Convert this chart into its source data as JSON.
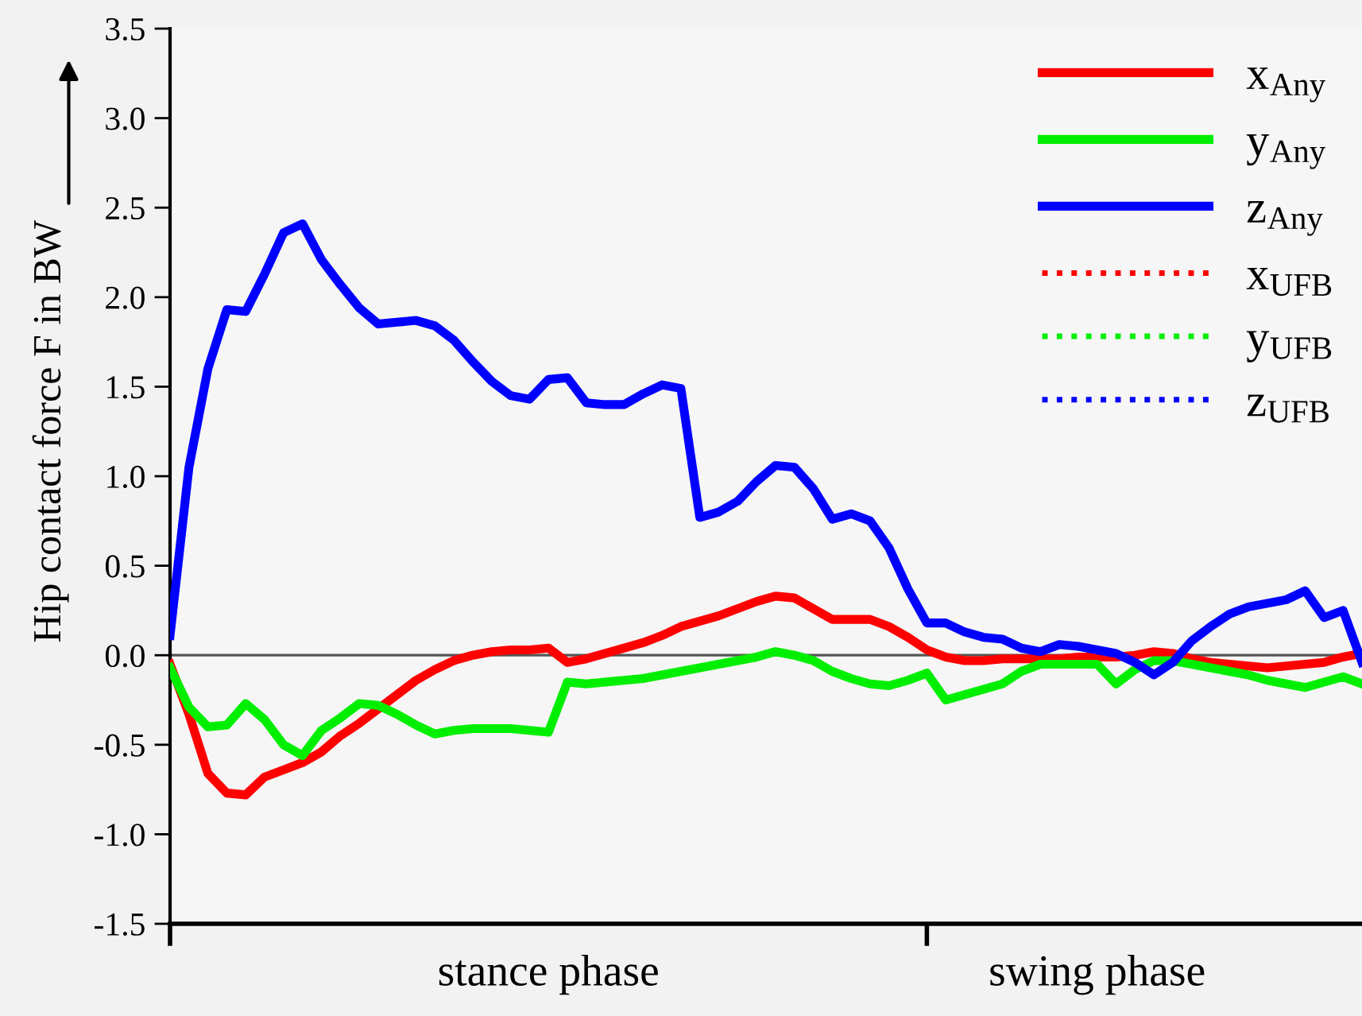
{
  "chart_data": {
    "type": "line",
    "ylabel": "Hip contact force F in BW",
    "categories": [
      null,
      null,
      null,
      null,
      null,
      null,
      null,
      null,
      null,
      null,
      null,
      null,
      null,
      null,
      null,
      null,
      null,
      null,
      null,
      null,
      "stance phase",
      null,
      null,
      null,
      null,
      null,
      null,
      null,
      null,
      null,
      null,
      null,
      null,
      null,
      null,
      null,
      null,
      null,
      null,
      null,
      null,
      null,
      null,
      null,
      null,
      null,
      null,
      null,
      null,
      "swing phase",
      null,
      null,
      null,
      null,
      null,
      null,
      null,
      null,
      null,
      null,
      null,
      null,
      null,
      null
    ],
    "ylim": [
      -1.5,
      3.5
    ],
    "yticks": [
      {
        "value": -1.5,
        "label": "-1.5"
      },
      {
        "value": -1,
        "label": "-1.0"
      },
      {
        "value": -0.5,
        "label": "-0.5"
      },
      {
        "value": 0,
        "label": "0.0"
      },
      {
        "value": 0.5,
        "label": "0.5"
      },
      {
        "value": 1,
        "label": "1.0"
      },
      {
        "value": 1.5,
        "label": "1.5"
      },
      {
        "value": 2,
        "label": "2.0"
      },
      {
        "value": 2.5,
        "label": "2.5"
      },
      {
        "value": 3,
        "label": "3.0"
      },
      {
        "value": 3.5,
        "label": "3.5"
      }
    ],
    "ref_lines": [
      {
        "axis": "y",
        "value": 0,
        "color": "#555555"
      }
    ],
    "legend": "top right",
    "marker": "none",
    "series": [
      {
        "name": "x$_{Any}$",
        "color": "#ff0000",
        "line_style": "solid",
        "values": [
          -0.05,
          -0.33,
          -0.66,
          -0.77,
          -0.78,
          -0.68,
          -0.64,
          -0.6,
          -0.54,
          -0.45,
          -0.38,
          -0.3,
          -0.22,
          -0.14,
          -0.08,
          -0.03,
          0.0,
          0.02,
          0.03,
          0.03,
          0.04,
          -0.04,
          -0.02,
          0.01,
          0.04,
          0.07,
          0.11,
          0.16,
          0.19,
          0.22,
          0.26,
          0.3,
          0.33,
          0.32,
          0.26,
          0.2,
          0.2,
          0.2,
          0.16,
          0.1,
          0.03,
          -0.01,
          -0.03,
          -0.03,
          -0.02,
          -0.02,
          -0.02,
          -0.02,
          -0.01,
          -0.01,
          -0.01,
          0.0,
          0.02,
          0.01,
          -0.02,
          -0.04,
          -0.05,
          -0.06,
          -0.07,
          -0.06,
          -0.05,
          -0.04,
          -0.01,
          0.01
        ]
      },
      {
        "name": "y$_{Any}$",
        "color": "#00ee00",
        "line_style": "solid",
        "values": [
          -0.07,
          -0.29,
          -0.4,
          -0.39,
          -0.27,
          -0.36,
          -0.5,
          -0.56,
          -0.42,
          -0.35,
          -0.27,
          -0.28,
          -0.33,
          -0.39,
          -0.44,
          -0.42,
          -0.41,
          -0.41,
          -0.41,
          -0.42,
          -0.43,
          -0.15,
          -0.16,
          -0.15,
          -0.14,
          -0.13,
          -0.11,
          -0.09,
          -0.07,
          -0.05,
          -0.03,
          -0.01,
          0.02,
          0.0,
          -0.03,
          -0.09,
          -0.13,
          -0.16,
          -0.17,
          -0.14,
          -0.1,
          -0.25,
          -0.22,
          -0.19,
          -0.16,
          -0.09,
          -0.05,
          -0.05,
          -0.05,
          -0.05,
          -0.16,
          -0.08,
          -0.03,
          -0.03,
          -0.05,
          -0.07,
          -0.09,
          -0.11,
          -0.14,
          -0.16,
          -0.18,
          -0.15,
          -0.12,
          -0.16
        ]
      },
      {
        "name": "z$_{Any}$",
        "color": "#0000ff",
        "line_style": "solid",
        "values": [
          0.11,
          1.05,
          1.6,
          1.93,
          1.92,
          2.13,
          2.36,
          2.41,
          2.21,
          2.07,
          1.94,
          1.85,
          1.86,
          1.87,
          1.84,
          1.76,
          1.64,
          1.53,
          1.45,
          1.43,
          1.54,
          1.55,
          1.41,
          1.4,
          1.4,
          1.46,
          1.51,
          1.49,
          0.77,
          0.8,
          0.86,
          0.97,
          1.06,
          1.05,
          0.93,
          0.76,
          0.79,
          0.75,
          0.6,
          0.37,
          0.18,
          0.18,
          0.13,
          0.1,
          0.09,
          0.04,
          0.02,
          0.06,
          0.05,
          0.03,
          0.01,
          -0.04,
          -0.11,
          -0.04,
          0.08,
          0.16,
          0.23,
          0.27,
          0.29,
          0.31,
          0.36,
          0.21,
          0.25,
          -0.04
        ]
      },
      {
        "name": "x$_{UFB}$",
        "color": "#ff0000",
        "line_style": "dotted",
        "values": [
          null,
          null,
          null,
          null,
          null,
          null,
          null,
          null,
          null,
          null,
          null,
          null,
          null,
          null,
          null,
          null,
          null,
          null,
          null,
          null,
          null,
          null,
          null,
          null,
          null,
          null,
          null,
          null,
          null,
          null,
          null,
          null,
          null,
          null,
          null,
          null,
          null,
          null,
          null,
          null,
          null,
          null,
          null,
          null,
          null,
          null,
          null,
          null,
          null,
          null,
          null,
          null,
          null,
          null,
          null,
          null,
          null,
          null,
          null,
          null,
          null,
          null,
          null,
          null
        ]
      },
      {
        "name": "y$_{UFB}$",
        "color": "#00ee00",
        "line_style": "dotted",
        "values": [
          null,
          null,
          null,
          null,
          null,
          null,
          null,
          null,
          null,
          null,
          null,
          null,
          null,
          null,
          null,
          null,
          null,
          null,
          null,
          null,
          null,
          null,
          null,
          null,
          null,
          null,
          null,
          null,
          null,
          null,
          null,
          null,
          null,
          null,
          null,
          null,
          null,
          null,
          null,
          null,
          null,
          null,
          null,
          null,
          null,
          null,
          null,
          null,
          null,
          null,
          null,
          null,
          null,
          null,
          null,
          null,
          null,
          null,
          null,
          null,
          null,
          null,
          null,
          null
        ]
      },
      {
        "name": "z$_{UFB}$",
        "color": "#0000ff",
        "line_style": "dotted",
        "values": [
          null,
          null,
          null,
          null,
          null,
          null,
          null,
          null,
          null,
          null,
          null,
          null,
          null,
          null,
          null,
          null,
          null,
          null,
          null,
          null,
          null,
          null,
          null,
          null,
          null,
          null,
          null,
          null,
          null,
          null,
          null,
          null,
          null,
          null,
          null,
          null,
          null,
          null,
          null,
          null,
          null,
          null,
          null,
          null,
          null,
          null,
          null,
          null,
          null,
          null,
          null,
          null,
          null,
          null,
          null,
          null,
          null,
          null,
          null,
          null,
          null,
          null,
          null,
          null
        ]
      }
    ]
  }
}
